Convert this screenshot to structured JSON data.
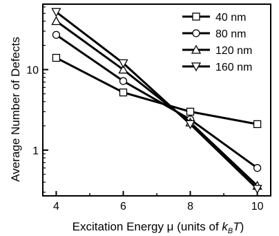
{
  "chart_data": {
    "type": "line",
    "xlabel_main": "Excitation Energy μ (units of ",
    "xlabel_k": "k",
    "xlabel_sub": "B",
    "xlabel_T": "T",
    "xlabel_close": ")",
    "ylabel": "Average Number of Defects",
    "y_scale": "log",
    "xlim": [
      3.6,
      10.4
    ],
    "ylim": [
      0.27,
      65
    ],
    "x_ticks": [
      4,
      6,
      8,
      10
    ],
    "x_tick_labels": [
      "4",
      "6",
      "8",
      "10"
    ],
    "y_ticks": [
      1,
      10
    ],
    "y_tick_labels": [
      "1",
      "10"
    ],
    "legend_position": "top-right",
    "x": [
      4,
      6,
      8,
      10
    ],
    "series": [
      {
        "name": "40 nm",
        "marker": "square",
        "values": [
          14,
          5.2,
          3.0,
          2.1
        ]
      },
      {
        "name": "80 nm",
        "marker": "circle",
        "values": [
          27,
          7.2,
          2.4,
          0.6
        ]
      },
      {
        "name": "120 nm",
        "marker": "triangle-up",
        "values": [
          40,
          10,
          2.2,
          0.36
        ]
      },
      {
        "name": "160 nm",
        "marker": "triangle-down",
        "values": [
          52,
          12,
          2.1,
          0.33
        ]
      }
    ]
  }
}
